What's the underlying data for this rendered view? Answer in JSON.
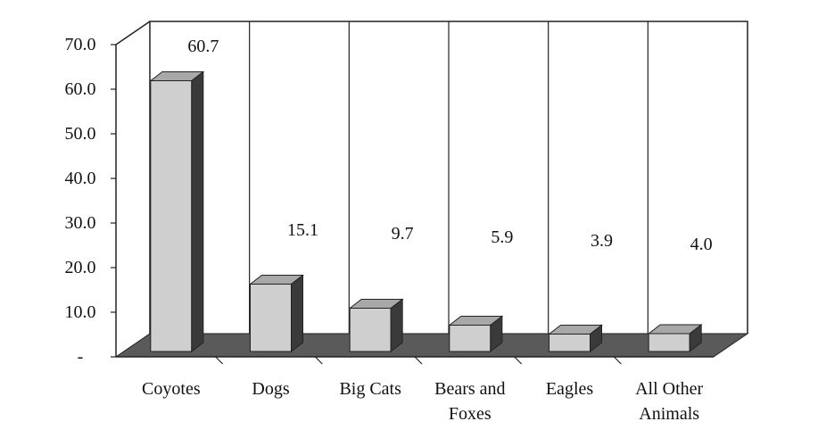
{
  "chart_data": {
    "type": "bar",
    "style": "3d-column",
    "categories": [
      "Coyotes",
      "Dogs",
      "Big Cats",
      "Bears and Foxes",
      "Eagles",
      "All Other Animals"
    ],
    "category_lines": [
      [
        "Coyotes"
      ],
      [
        "Dogs"
      ],
      [
        "Big Cats"
      ],
      [
        "Bears and",
        "Foxes"
      ],
      [
        "Eagles"
      ],
      [
        "All Other",
        "Animals"
      ]
    ],
    "values": [
      60.7,
      15.1,
      9.7,
      5.9,
      3.9,
      4.0
    ],
    "data_labels": [
      "60.7",
      "15.1",
      "9.7",
      "5.9",
      "3.9",
      "4.0"
    ],
    "ylim": [
      0,
      70
    ],
    "yticks": [
      0,
      10,
      20,
      30,
      40,
      50,
      60,
      70
    ],
    "ytick_labels": [
      "-",
      "10.0",
      "20.0",
      "30.0",
      "40.0",
      "50.0",
      "60.0",
      "70.0"
    ],
    "title": "",
    "xlabel": "",
    "ylabel": "",
    "grid": "vertical category dividers on back wall",
    "legend": "none"
  },
  "colors": {
    "bar_front": "#cfcfcf",
    "bar_top": "#a8a8a8",
    "bar_side": "#3a3a3a",
    "floor": "#5a5a5a",
    "frame": "#222222",
    "background": "#ffffff"
  }
}
